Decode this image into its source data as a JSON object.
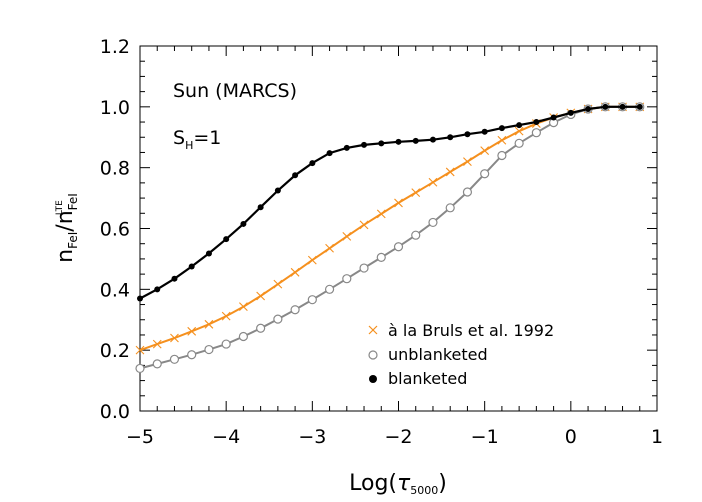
{
  "chart_data": {
    "type": "line",
    "xlim": [
      -5,
      1
    ],
    "ylim": [
      0,
      1.2
    ],
    "xticks": [
      -5,
      -4,
      -3,
      -2,
      -1,
      0,
      1
    ],
    "xtick_labels": [
      "−5",
      "−4",
      "−3",
      "−2",
      "−1",
      "0",
      "1"
    ],
    "yticks": [
      0,
      0.2,
      0.4,
      0.6,
      0.8,
      1.0,
      1.2
    ],
    "ytick_labels": [
      "0.0",
      "0.2",
      "0.4",
      "0.6",
      "0.8",
      "1.0",
      "1.2"
    ],
    "xlabel": {
      "prefix": "Log(",
      "tau": "τ",
      "sub": "5000",
      "suffix": ")"
    },
    "ylabel": {
      "n": "n",
      "fei": "FeI",
      "slash": "/",
      "lte": "LTE"
    },
    "annotation": "Sun (MARCS)",
    "annotation2": {
      "s": "S",
      "sub": "H",
      "rest": "=1"
    },
    "series": [
      {
        "name": "à la Bruls et al. 1992",
        "color": "#f5901e",
        "marker": "x",
        "x": [
          -5.0,
          -4.8,
          -4.6,
          -4.4,
          -4.2,
          -4.0,
          -3.8,
          -3.6,
          -3.4,
          -3.2,
          -3.0,
          -2.8,
          -2.6,
          -2.4,
          -2.2,
          -2.0,
          -1.8,
          -1.6,
          -1.4,
          -1.2,
          -1.0,
          -0.8,
          -0.6,
          -0.4,
          -0.2,
          0.0,
          0.2,
          0.4,
          0.6,
          0.8
        ],
        "y": [
          0.2,
          0.22,
          0.24,
          0.262,
          0.285,
          0.312,
          0.343,
          0.378,
          0.417,
          0.456,
          0.496,
          0.535,
          0.574,
          0.612,
          0.648,
          0.684,
          0.718,
          0.752,
          0.786,
          0.82,
          0.856,
          0.89,
          0.92,
          0.945,
          0.965,
          0.98,
          0.993,
          1.0,
          1.0,
          1.0
        ]
      },
      {
        "name": "unblanketed",
        "color": "#888888",
        "marker": "open-circle",
        "x": [
          -5.0,
          -4.8,
          -4.6,
          -4.4,
          -4.2,
          -4.0,
          -3.8,
          -3.6,
          -3.4,
          -3.2,
          -3.0,
          -2.8,
          -2.6,
          -2.4,
          -2.2,
          -2.0,
          -1.8,
          -1.6,
          -1.4,
          -1.2,
          -1.0,
          -0.8,
          -0.6,
          -0.4,
          -0.2,
          0.0,
          0.2,
          0.4,
          0.6,
          0.8
        ],
        "y": [
          0.14,
          0.155,
          0.17,
          0.185,
          0.202,
          0.22,
          0.245,
          0.272,
          0.302,
          0.333,
          0.366,
          0.4,
          0.435,
          0.47,
          0.505,
          0.54,
          0.578,
          0.62,
          0.668,
          0.72,
          0.78,
          0.84,
          0.88,
          0.915,
          0.948,
          0.975,
          0.993,
          1.0,
          1.0,
          1.0
        ]
      },
      {
        "name": "blanketed",
        "color": "#000000",
        "marker": "filled-circle",
        "x": [
          -5.0,
          -4.8,
          -4.6,
          -4.4,
          -4.2,
          -4.0,
          -3.8,
          -3.6,
          -3.4,
          -3.2,
          -3.0,
          -2.8,
          -2.6,
          -2.4,
          -2.2,
          -2.0,
          -1.8,
          -1.6,
          -1.4,
          -1.2,
          -1.0,
          -0.8,
          -0.6,
          -0.4,
          -0.2,
          0.0,
          0.2,
          0.4,
          0.6,
          0.8
        ],
        "y": [
          0.37,
          0.4,
          0.435,
          0.475,
          0.518,
          0.565,
          0.615,
          0.67,
          0.725,
          0.775,
          0.815,
          0.848,
          0.865,
          0.875,
          0.88,
          0.885,
          0.888,
          0.892,
          0.9,
          0.91,
          0.918,
          0.93,
          0.94,
          0.95,
          0.965,
          0.98,
          0.993,
          1.0,
          1.0,
          1.0
        ]
      }
    ]
  }
}
